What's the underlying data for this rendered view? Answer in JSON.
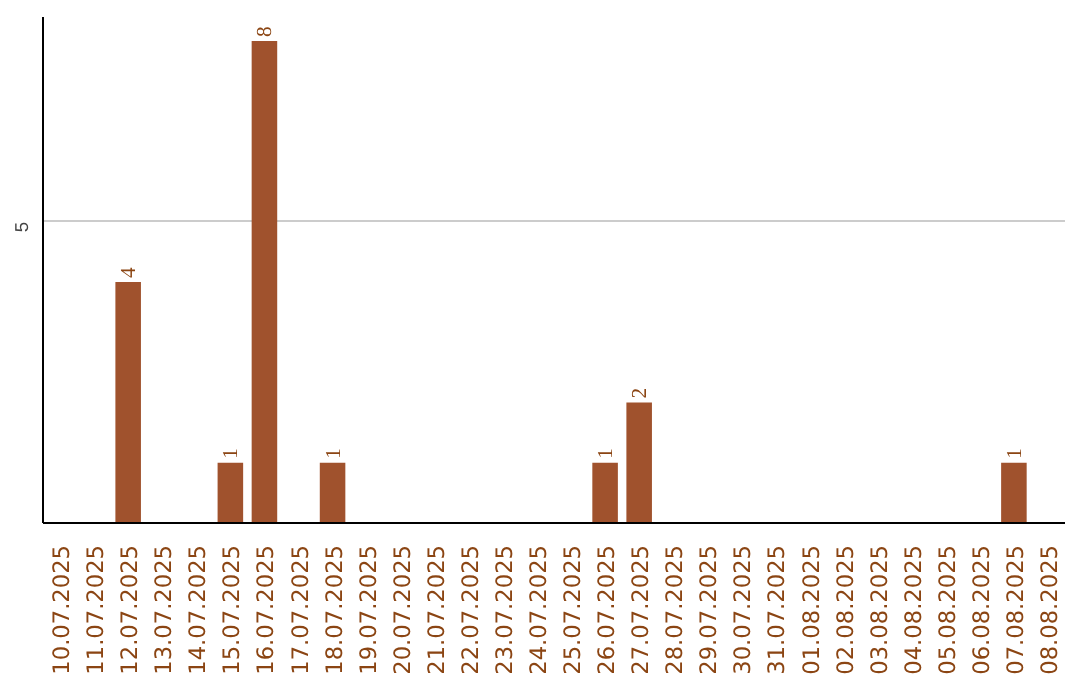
{
  "chart_data": {
    "type": "bar",
    "categories": [
      "10.07.2025",
      "11.07.2025",
      "12.07.2025",
      "13.07.2025",
      "14.07.2025",
      "15.07.2025",
      "16.07.2025",
      "17.07.2025",
      "18.07.2025",
      "19.07.2025",
      "20.07.2025",
      "21.07.2025",
      "22.07.2025",
      "23.07.2025",
      "24.07.2025",
      "25.07.2025",
      "26.07.2025",
      "27.07.2025",
      "28.07.2025",
      "29.07.2025",
      "30.07.2025",
      "31.07.2025",
      "01.08.2025",
      "02.08.2025",
      "03.08.2025",
      "04.08.2025",
      "05.08.2025",
      "06.08.2025",
      "07.08.2025",
      "08.08.2025"
    ],
    "values": [
      0,
      0,
      4,
      0,
      0,
      1,
      8,
      0,
      1,
      0,
      0,
      0,
      0,
      0,
      0,
      0,
      1,
      2,
      0,
      0,
      0,
      0,
      0,
      0,
      0,
      0,
      0,
      0,
      1,
      0
    ],
    "color": "#a0522d",
    "ylim": [
      0,
      8.4
    ],
    "yticks": [
      5
    ],
    "value_labels": [
      null,
      null,
      "4",
      null,
      null,
      "1",
      "8",
      null,
      "1",
      null,
      null,
      null,
      null,
      null,
      null,
      null,
      "1",
      "2",
      null,
      null,
      null,
      null,
      null,
      null,
      null,
      null,
      null,
      null,
      "1",
      null
    ],
    "grid": "y"
  }
}
